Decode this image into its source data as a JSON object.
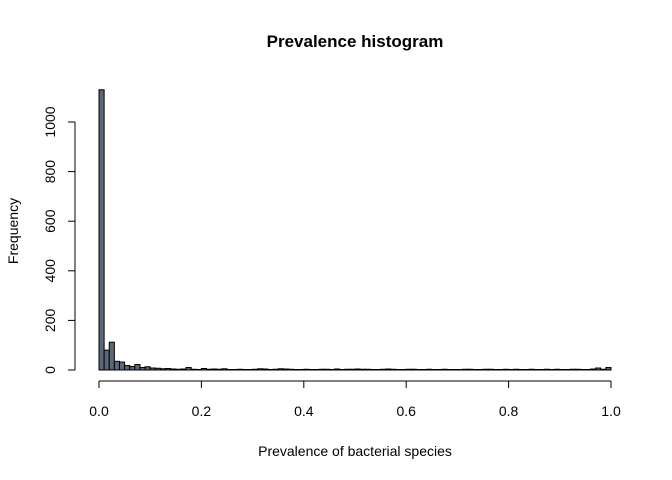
{
  "chart_data": {
    "type": "bar",
    "title": "Prevalence histogram",
    "xlabel": "Prevalence of bacterial species",
    "ylabel": "Frequency",
    "xlim": [
      0,
      1
    ],
    "ylim": [
      0,
      1100
    ],
    "x_ticks": [
      "0.0",
      "0.2",
      "0.4",
      "0.6",
      "0.8",
      "1.0"
    ],
    "y_ticks": [
      "0",
      "200",
      "400",
      "600",
      "800",
      "1000"
    ],
    "bin_width": 0.01,
    "bar_color": "#5a6878",
    "grid": false,
    "legend": "none",
    "bin_starts": [
      0.0,
      0.01,
      0.02,
      0.03,
      0.04,
      0.05,
      0.06,
      0.07,
      0.08,
      0.09,
      0.1,
      0.11,
      0.12,
      0.13,
      0.14,
      0.15,
      0.16,
      0.17,
      0.18,
      0.19,
      0.2,
      0.21,
      0.22,
      0.23,
      0.24,
      0.25,
      0.26,
      0.27,
      0.28,
      0.29,
      0.3,
      0.31,
      0.32,
      0.33,
      0.34,
      0.35,
      0.36,
      0.37,
      0.38,
      0.39,
      0.4,
      0.41,
      0.42,
      0.43,
      0.44,
      0.45,
      0.46,
      0.47,
      0.48,
      0.49,
      0.5,
      0.51,
      0.52,
      0.53,
      0.54,
      0.55,
      0.56,
      0.57,
      0.58,
      0.59,
      0.6,
      0.61,
      0.62,
      0.63,
      0.64,
      0.65,
      0.66,
      0.67,
      0.68,
      0.69,
      0.7,
      0.71,
      0.72,
      0.73,
      0.74,
      0.75,
      0.76,
      0.77,
      0.78,
      0.79,
      0.8,
      0.81,
      0.82,
      0.83,
      0.84,
      0.85,
      0.86,
      0.87,
      0.88,
      0.89,
      0.9,
      0.91,
      0.92,
      0.93,
      0.94,
      0.95,
      0.96,
      0.97,
      0.98,
      0.99
    ],
    "values": [
      1130,
      80,
      112,
      35,
      32,
      18,
      14,
      22,
      10,
      13,
      8,
      7,
      5,
      6,
      4,
      3,
      4,
      10,
      3,
      2,
      6,
      3,
      4,
      3,
      5,
      2,
      2,
      3,
      2,
      2,
      3,
      5,
      4,
      2,
      3,
      5,
      4,
      3,
      2,
      2,
      3,
      2,
      2,
      3,
      3,
      2,
      4,
      2,
      3,
      3,
      4,
      3,
      3,
      2,
      2,
      3,
      4,
      3,
      2,
      2,
      3,
      3,
      2,
      2,
      3,
      2,
      2,
      3,
      2,
      2,
      2,
      3,
      3,
      2,
      2,
      3,
      3,
      2,
      2,
      3,
      2,
      3,
      2,
      2,
      3,
      2,
      2,
      3,
      2,
      3,
      2,
      2,
      3,
      3,
      2,
      2,
      4,
      8,
      3,
      10
    ]
  }
}
